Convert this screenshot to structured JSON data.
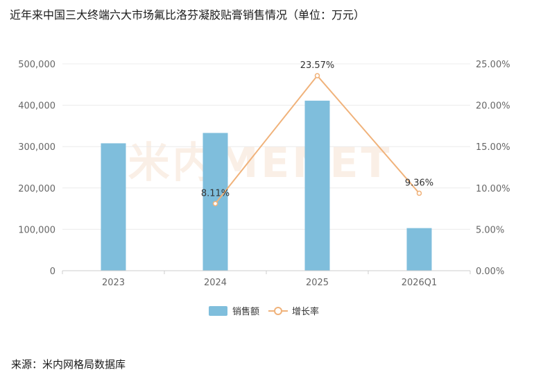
{
  "title": "近年来中国三大终端六大市场氟比洛芬凝胶贴膏销售情况（单位：万元）",
  "source": "来源：米内网格局数据库",
  "watermark": "米内MENET",
  "colors": {
    "bar": "#7fbedc",
    "line": "#f0b27a",
    "grid": "#ececec",
    "axis": "#cccccc"
  },
  "chart_data": {
    "type": "bar",
    "categories": [
      "2023",
      "2024",
      "2025",
      "2026Q1"
    ],
    "series": [
      {
        "name": "销售额",
        "type": "bar",
        "axis": "left",
        "values": [
          308000,
          333000,
          411000,
          103000
        ]
      },
      {
        "name": "增长率",
        "type": "line",
        "axis": "right",
        "values": [
          null,
          8.11,
          23.57,
          9.36
        ],
        "labels": [
          "",
          "8.11%",
          "23.57%",
          "9.36%"
        ]
      }
    ],
    "y_left": {
      "min": 0,
      "max": 500000,
      "ticks": [
        0,
        100000,
        200000,
        300000,
        400000,
        500000
      ],
      "tick_labels": [
        "0",
        "100,000",
        "200,000",
        "300,000",
        "400,000",
        "500,000"
      ]
    },
    "y_right": {
      "min": 0,
      "max": 25,
      "ticks": [
        0,
        5,
        10,
        15,
        20,
        25
      ],
      "tick_labels": [
        "0.00%",
        "5.00%",
        "10.00%",
        "15.00%",
        "20.00%",
        "25.00%"
      ]
    },
    "grid": true,
    "legend": "bottom-center"
  }
}
